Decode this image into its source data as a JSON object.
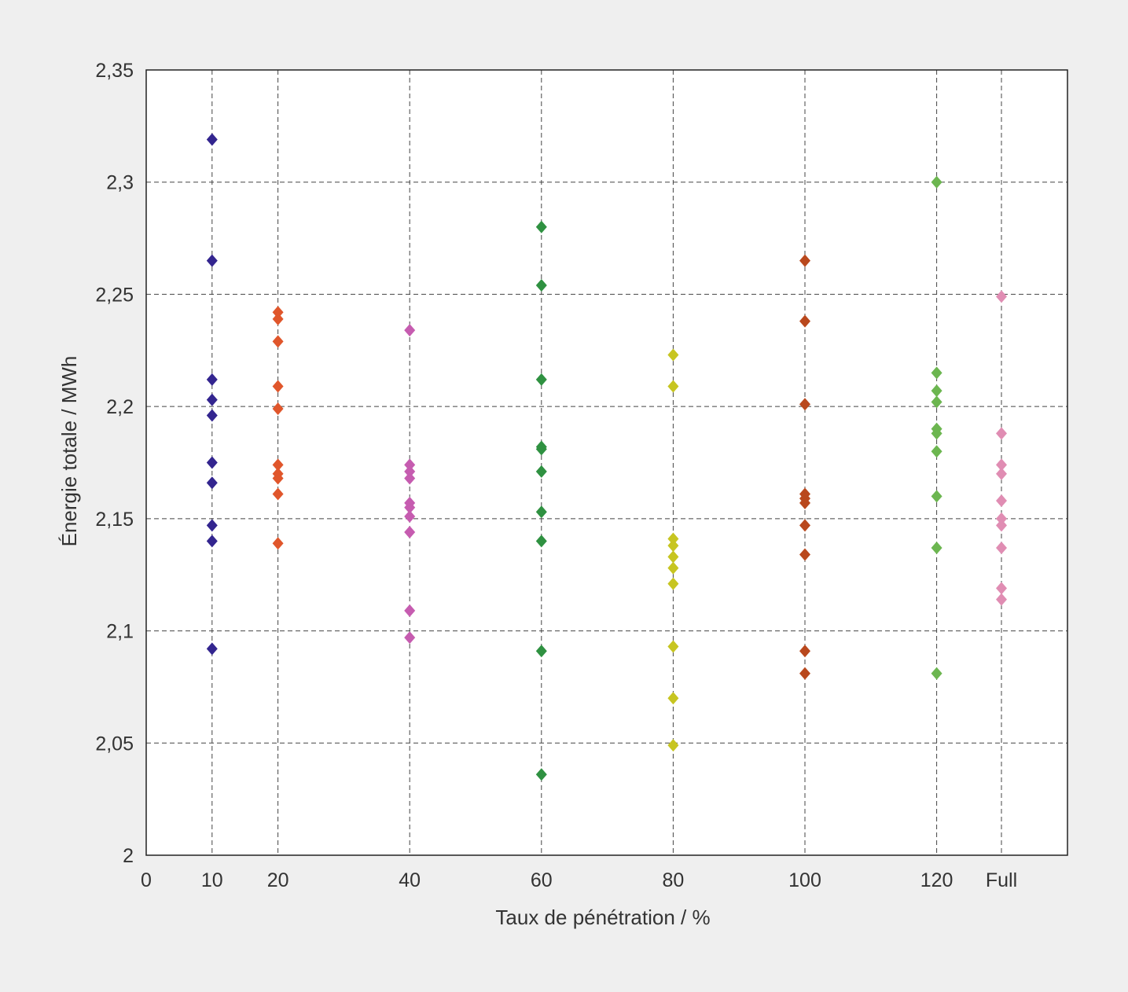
{
  "chart_data": {
    "type": "scatter",
    "title": "",
    "xlabel": "Taux de pénétration / %",
    "ylabel": "Énergie totale / MWh",
    "xlim": [
      0,
      140
    ],
    "ylim": [
      2,
      2.35
    ],
    "x_ticks": [
      {
        "value": 0,
        "label": "0"
      },
      {
        "value": 10,
        "label": "10"
      },
      {
        "value": 20,
        "label": "20"
      },
      {
        "value": 40,
        "label": "40"
      },
      {
        "value": 60,
        "label": "60"
      },
      {
        "value": 80,
        "label": "80"
      },
      {
        "value": 100,
        "label": "100"
      },
      {
        "value": 120,
        "label": "120"
      },
      {
        "value": 130,
        "label": "Full"
      }
    ],
    "y_ticks": [
      {
        "value": 2,
        "label": "2"
      },
      {
        "value": 2.05,
        "label": "2,05"
      },
      {
        "value": 2.1,
        "label": "2,1"
      },
      {
        "value": 2.15,
        "label": "2,15"
      },
      {
        "value": 2.2,
        "label": "2,2"
      },
      {
        "value": 2.25,
        "label": "2,25"
      },
      {
        "value": 2.3,
        "label": "2,3"
      },
      {
        "value": 2.35,
        "label": "2,35"
      }
    ],
    "grid": {
      "x": true,
      "y": true,
      "style": "dashed"
    },
    "legend": "none",
    "series": [
      {
        "x": 10,
        "color": "#33258f",
        "values": [
          2.319,
          2.265,
          2.212,
          2.203,
          2.196,
          2.175,
          2.166,
          2.147,
          2.14,
          2.092
        ]
      },
      {
        "x": 20,
        "color": "#e0562b",
        "values": [
          2.242,
          2.239,
          2.229,
          2.209,
          2.199,
          2.174,
          2.17,
          2.168,
          2.161,
          2.139
        ]
      },
      {
        "x": 40,
        "color": "#c65cb0",
        "values": [
          2.234,
          2.174,
          2.171,
          2.168,
          2.157,
          2.155,
          2.151,
          2.144,
          2.109,
          2.097
        ]
      },
      {
        "x": 60,
        "color": "#2f9141",
        "values": [
          2.28,
          2.254,
          2.212,
          2.182,
          2.181,
          2.171,
          2.153,
          2.14,
          2.091,
          2.036
        ]
      },
      {
        "x": 80,
        "color": "#c7c521",
        "values": [
          2.223,
          2.209,
          2.141,
          2.138,
          2.133,
          2.128,
          2.121,
          2.093,
          2.07,
          2.049
        ]
      },
      {
        "x": 100,
        "color": "#b9481d",
        "values": [
          2.265,
          2.238,
          2.201,
          2.161,
          2.159,
          2.157,
          2.147,
          2.134,
          2.091,
          2.081
        ]
      },
      {
        "x": 120,
        "color": "#6cb650",
        "values": [
          2.3,
          2.215,
          2.207,
          2.202,
          2.19,
          2.188,
          2.18,
          2.16,
          2.137,
          2.081
        ]
      },
      {
        "x": 130,
        "color": "#e08db3",
        "values": [
          2.249,
          2.188,
          2.174,
          2.17,
          2.158,
          2.15,
          2.147,
          2.137,
          2.119,
          2.114
        ]
      }
    ]
  }
}
